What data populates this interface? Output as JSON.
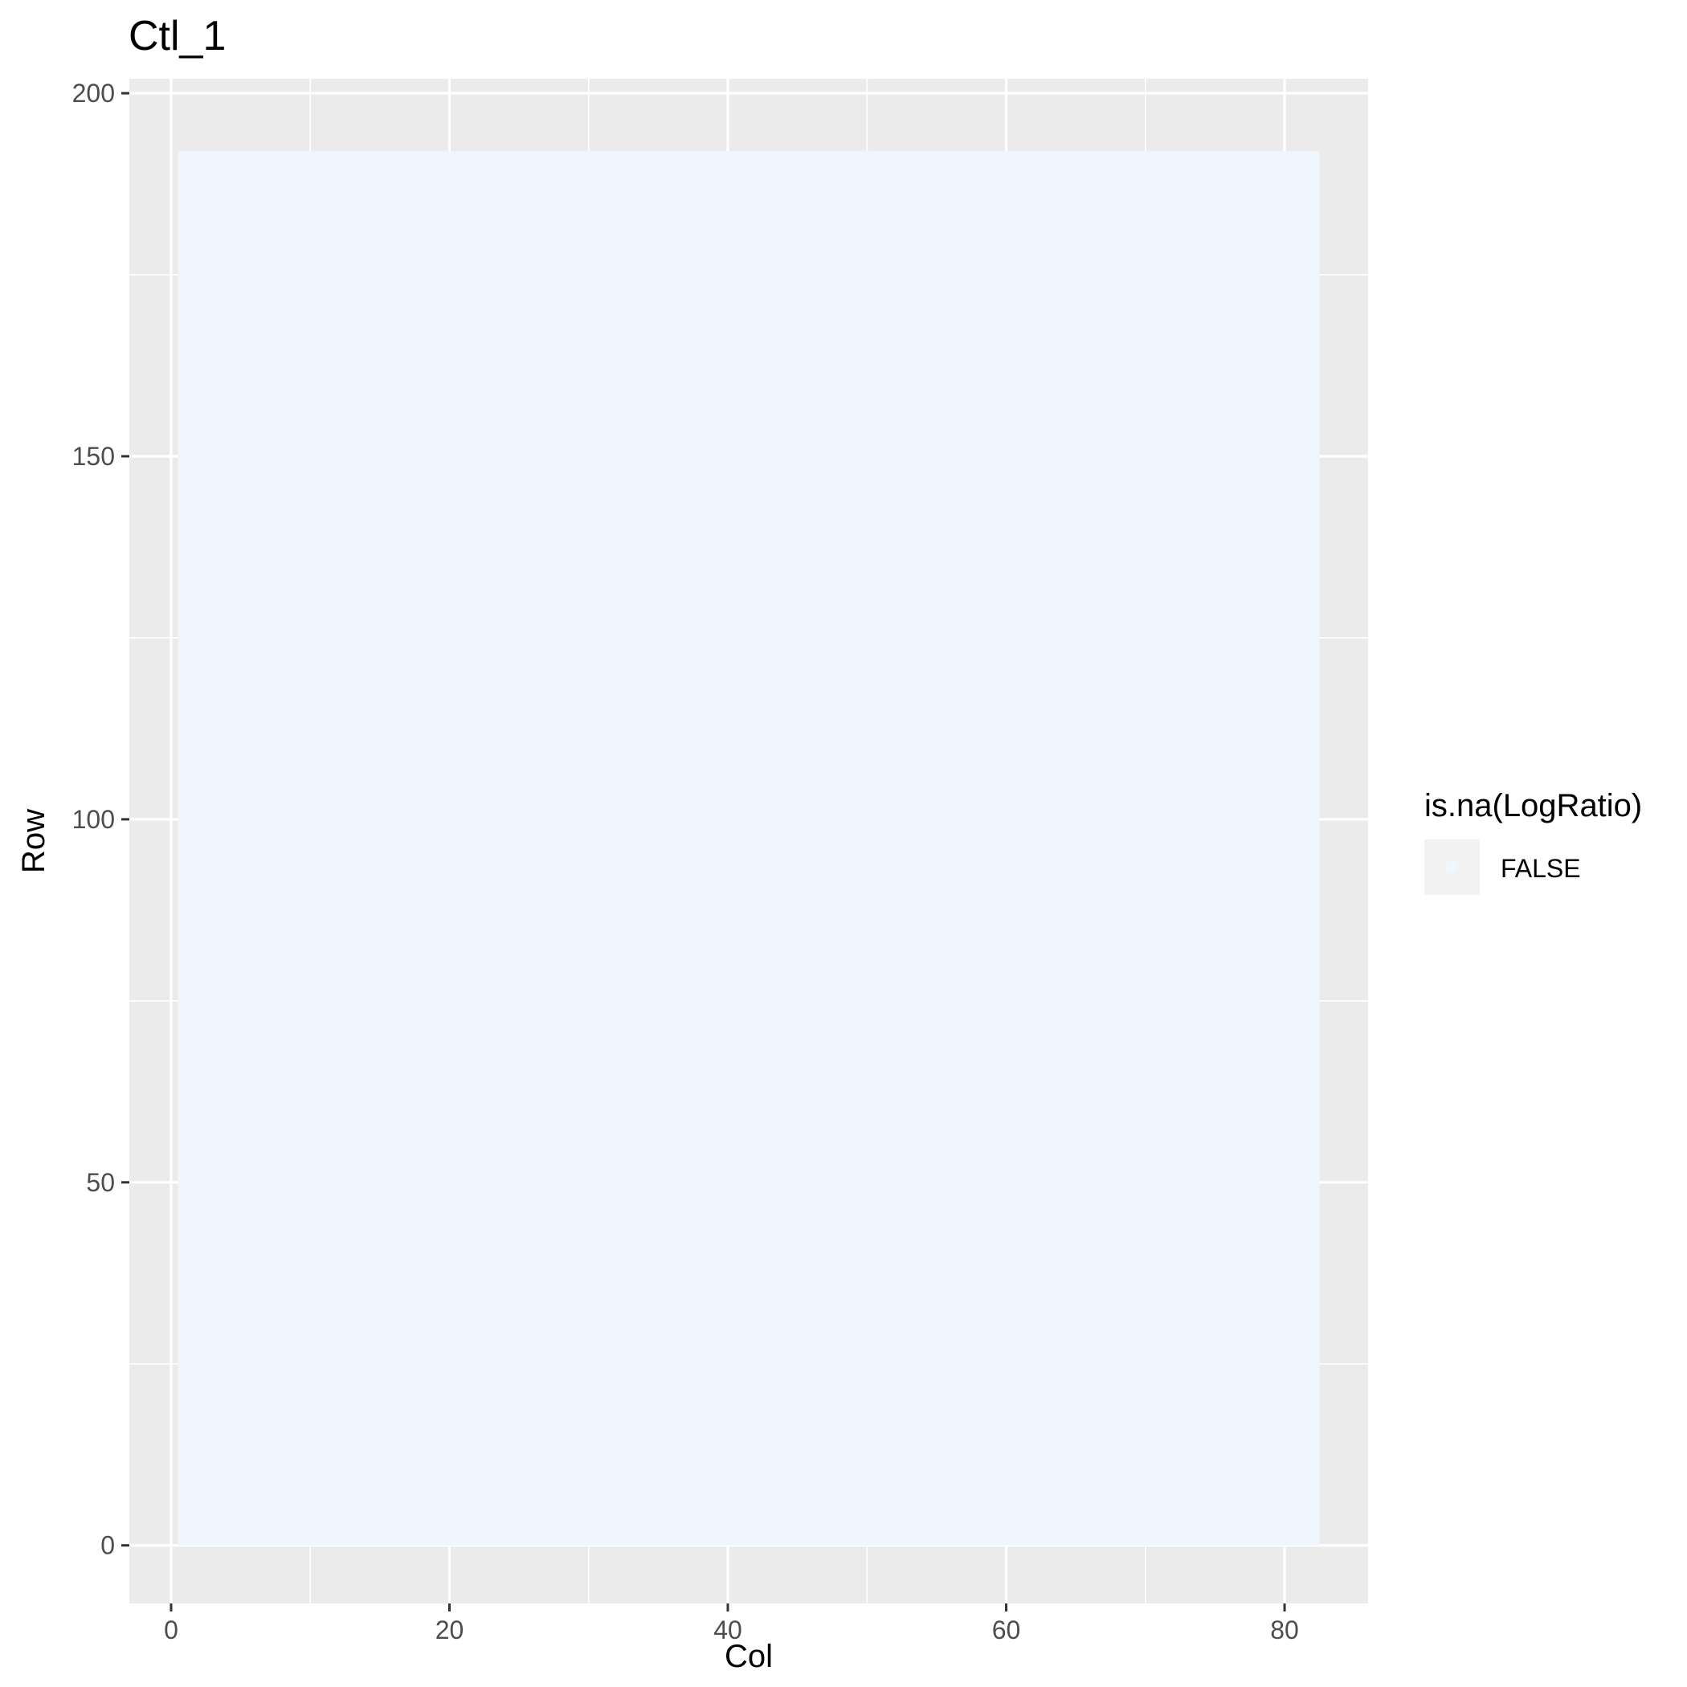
{
  "chart_data": {
    "type": "heatmap",
    "title": "Ctl_1",
    "xlabel": "Col",
    "ylabel": "Row",
    "xlim": [
      -3,
      86
    ],
    "ylim": [
      -8,
      202
    ],
    "x_ticks": [
      0,
      20,
      40,
      60,
      80
    ],
    "y_ticks": [
      0,
      50,
      100,
      150,
      200
    ],
    "x_minor": [
      10,
      30,
      50,
      70
    ],
    "y_minor": [
      25,
      75,
      125,
      175
    ],
    "grid": true,
    "tiles": {
      "x_min": 0.5,
      "x_max": 82.5,
      "y_min": 0,
      "y_max": 192
    },
    "fill_scale": {
      "variable": "is.na(LogRatio)",
      "levels": [
        {
          "label": "FALSE",
          "color": "#eff6fd"
        }
      ]
    },
    "legend": {
      "title": "is.na(LogRatio)",
      "position": "right"
    },
    "colors": {
      "panel": "#ebebeb",
      "grid": "#ffffff",
      "tick": "#333333"
    }
  }
}
